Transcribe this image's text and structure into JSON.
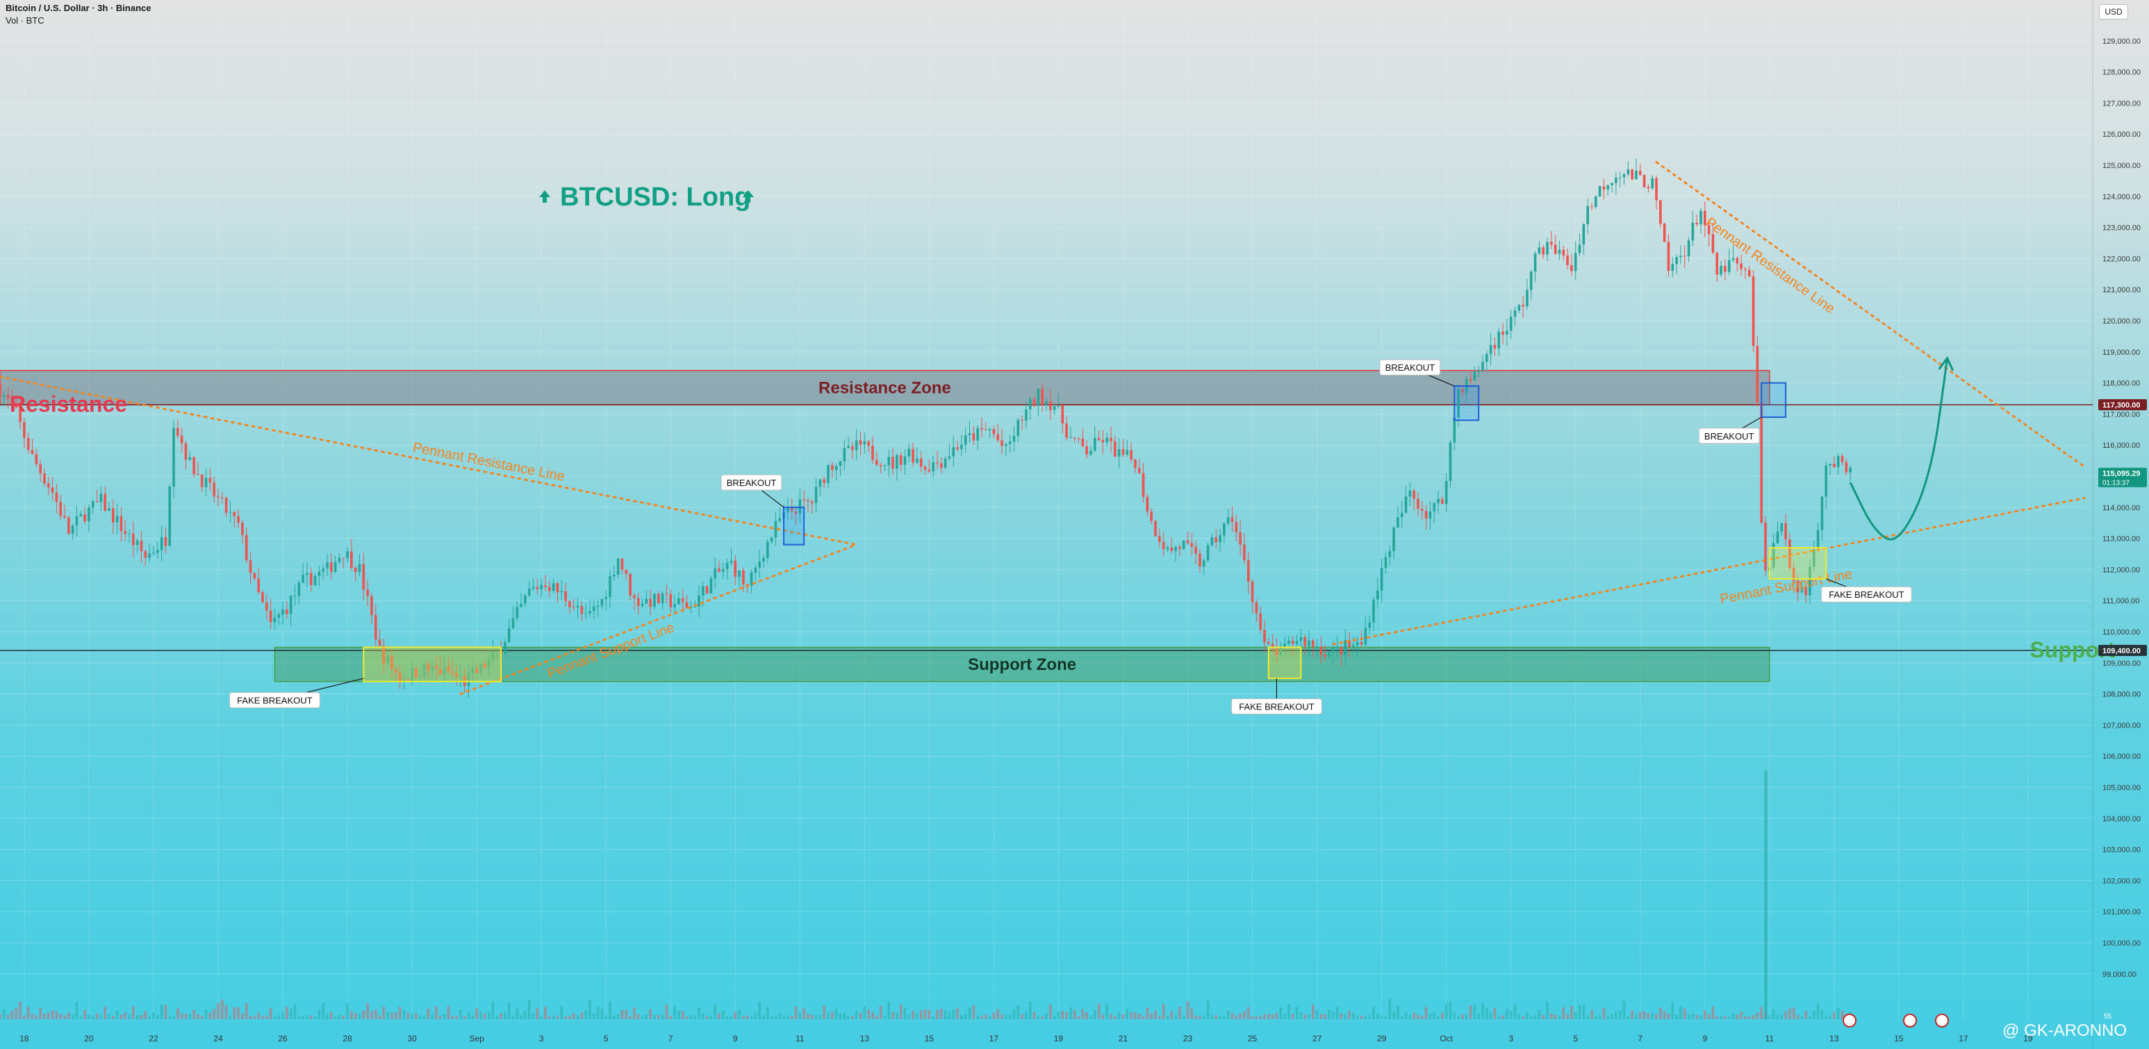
{
  "header": {
    "title": "Bitcoin / U.S. Dollar · 3h · Binance",
    "subtitle": "Vol · BTC",
    "currency_button": "USD"
  },
  "watermark": "@ GK-ARONNO",
  "colors": {
    "up": "#26a69a",
    "down": "#ef5350",
    "resistance": "#d32f2f",
    "support": "#43a047",
    "trendline": "#f5841f",
    "label_green": "#12a085"
  },
  "chart_data": {
    "type": "candlestick",
    "title": "BTCUSD: Long",
    "y_axis": {
      "ylim": [
        97500,
        130000
      ],
      "ticks": [
        "99,000.00",
        "100,000.00",
        "101,000.00",
        "102,000.00",
        "103,000.00",
        "104,000.00",
        "105,000.00",
        "106,000.00",
        "107,000.00",
        "108,000.00",
        "109,000.00",
        "110,000.00",
        "111,000.00",
        "112,000.00",
        "113,000.00",
        "114,000.00",
        "115,000.00",
        "116,000.00",
        "117,000.00",
        "118,000.00",
        "119,000.00",
        "120,000.00",
        "121,000.00",
        "122,000.00",
        "123,000.00",
        "124,000.00",
        "125,000.00",
        "126,000.00",
        "127,000.00",
        "128,000.00",
        "129,000.00"
      ],
      "price_badges": [
        {
          "label": "117,300.00",
          "value": 117300,
          "color": "#7b1f24"
        },
        {
          "label": "115,095.29",
          "sub": "01:13:37",
          "value": 115095.29,
          "color": "#12967f"
        },
        {
          "label": "109,400.00",
          "value": 109400,
          "color": "#263238"
        }
      ]
    },
    "x_axis": {
      "start": "2025-08-17T06:00",
      "end": "2025-10-21T00:00",
      "ticks": [
        {
          "date": "2025-08-18",
          "label": "18"
        },
        {
          "date": "2025-08-20",
          "label": "20"
        },
        {
          "date": "2025-08-22",
          "label": "22"
        },
        {
          "date": "2025-08-24",
          "label": "24"
        },
        {
          "date": "2025-08-26",
          "label": "26"
        },
        {
          "date": "2025-08-28",
          "label": "28"
        },
        {
          "date": "2025-08-30",
          "label": "30"
        },
        {
          "date": "2025-09-01",
          "label": "Sep"
        },
        {
          "date": "2025-09-03",
          "label": "3"
        },
        {
          "date": "2025-09-05",
          "label": "5"
        },
        {
          "date": "2025-09-07",
          "label": "7"
        },
        {
          "date": "2025-09-09",
          "label": "9"
        },
        {
          "date": "2025-09-11",
          "label": "11"
        },
        {
          "date": "2025-09-13",
          "label": "13"
        },
        {
          "date": "2025-09-15",
          "label": "15"
        },
        {
          "date": "2025-09-17",
          "label": "17"
        },
        {
          "date": "2025-09-19",
          "label": "19"
        },
        {
          "date": "2025-09-21",
          "label": "21"
        },
        {
          "date": "2025-09-23",
          "label": "23"
        },
        {
          "date": "2025-09-25",
          "label": "25"
        },
        {
          "date": "2025-09-27",
          "label": "27"
        },
        {
          "date": "2025-09-29",
          "label": "29"
        },
        {
          "date": "2025-10-01",
          "label": "Oct"
        },
        {
          "date": "2025-10-03",
          "label": "3"
        },
        {
          "date": "2025-10-05",
          "label": "5"
        },
        {
          "date": "2025-10-07",
          "label": "7"
        },
        {
          "date": "2025-10-09",
          "label": "9"
        },
        {
          "date": "2025-10-11",
          "label": "11"
        },
        {
          "date": "2025-10-13",
          "label": "13"
        },
        {
          "date": "2025-10-15",
          "label": "15"
        },
        {
          "date": "2025-10-17",
          "label": "17"
        },
        {
          "date": "2025-10-19",
          "label": "19"
        }
      ]
    },
    "price_path": [
      [
        "2025-08-17T06:00",
        118000
      ],
      [
        "2025-08-17T21:00",
        117000
      ],
      [
        "2025-08-18T09:00",
        115600
      ],
      [
        "2025-08-19T00:00",
        114500
      ],
      [
        "2025-08-19T12:00",
        113200
      ],
      [
        "2025-08-20T00:00",
        113800
      ],
      [
        "2025-08-20T12:00",
        114200
      ],
      [
        "2025-08-21T06:00",
        113200
      ],
      [
        "2025-08-21T21:00",
        112400
      ],
      [
        "2025-08-22T12:00",
        113000
      ],
      [
        "2025-08-22T18:00",
        116800
      ],
      [
        "2025-08-23T06:00",
        115400
      ],
      [
        "2025-08-24T00:00",
        114400
      ],
      [
        "2025-08-24T18:00",
        113400
      ],
      [
        "2025-08-25T06:00",
        111500
      ],
      [
        "2025-08-25T18:00",
        110200
      ],
      [
        "2025-08-26T06:00",
        110800
      ],
      [
        "2025-08-26T18:00",
        111600
      ],
      [
        "2025-08-27T12:00",
        112000
      ],
      [
        "2025-08-28T00:00",
        112600
      ],
      [
        "2025-08-28T12:00",
        112000
      ],
      [
        "2025-08-29T03:00",
        109400
      ],
      [
        "2025-08-29T18:00",
        108500
      ],
      [
        "2025-08-30T12:00",
        108800
      ],
      [
        "2025-08-31T06:00",
        108700
      ],
      [
        "2025-08-31T18:00",
        108400
      ],
      [
        "2025-09-01T06:00",
        108800
      ],
      [
        "2025-09-01T18:00",
        109300
      ],
      [
        "2025-09-02T06:00",
        110300
      ],
      [
        "2025-09-02T18:00",
        111300
      ],
      [
        "2025-09-03T06:00",
        111600
      ],
      [
        "2025-09-04T00:00",
        111000
      ],
      [
        "2025-09-04T12:00",
        110400
      ],
      [
        "2025-09-05T00:00",
        111000
      ],
      [
        "2025-09-05T12:00",
        112400
      ],
      [
        "2025-09-06T00:00",
        111000
      ],
      [
        "2025-09-07T00:00",
        111000
      ],
      [
        "2025-09-07T18:00",
        110800
      ],
      [
        "2025-09-08T12:00",
        111800
      ],
      [
        "2025-09-09T00:00",
        112200
      ],
      [
        "2025-09-09T12:00",
        111400
      ],
      [
        "2025-09-10T00:00",
        112600
      ],
      [
        "2025-09-10T12:00",
        113600
      ],
      [
        "2025-09-11T00:00",
        114000
      ],
      [
        "2025-09-11T12:00",
        114200
      ],
      [
        "2025-09-12T00:00",
        115300
      ],
      [
        "2025-09-12T12:00",
        115700
      ],
      [
        "2025-09-13T00:00",
        116000
      ],
      [
        "2025-09-13T12:00",
        115600
      ],
      [
        "2025-09-14T00:00",
        115400
      ],
      [
        "2025-09-14T12:00",
        115800
      ],
      [
        "2025-09-15T00:00",
        115300
      ],
      [
        "2025-09-15T12:00",
        115500
      ],
      [
        "2025-09-16T00:00",
        116000
      ],
      [
        "2025-09-16T12:00",
        116300
      ],
      [
        "2025-09-17T00:00",
        116500
      ],
      [
        "2025-09-17T12:00",
        115800
      ],
      [
        "2025-09-18T00:00",
        116900
      ],
      [
        "2025-09-18T12:00",
        117600
      ],
      [
        "2025-09-19T00:00",
        117300
      ],
      [
        "2025-09-19T12:00",
        116200
      ],
      [
        "2025-09-20T00:00",
        115800
      ],
      [
        "2025-09-20T12:00",
        116200
      ],
      [
        "2025-09-21T00:00",
        115700
      ],
      [
        "2025-09-21T12:00",
        115500
      ],
      [
        "2025-09-22T00:00",
        113500
      ],
      [
        "2025-09-22T12:00",
        112600
      ],
      [
        "2025-09-23T00:00",
        112800
      ],
      [
        "2025-09-23T12:00",
        112200
      ],
      [
        "2025-09-24T00:00",
        113000
      ],
      [
        "2025-09-24T12:00",
        113700
      ],
      [
        "2025-09-25T00:00",
        111700
      ],
      [
        "2025-09-25T12:00",
        109500
      ],
      [
        "2025-09-26T00:00",
        109300
      ],
      [
        "2025-09-26T12:00",
        109800
      ],
      [
        "2025-09-27T00:00",
        109600
      ],
      [
        "2025-09-27T12:00",
        109300
      ],
      [
        "2025-09-28T00:00",
        109500
      ],
      [
        "2025-09-28T12:00",
        109600
      ],
      [
        "2025-09-29T00:00",
        111500
      ],
      [
        "2025-09-29T12:00",
        113200
      ],
      [
        "2025-09-30T00:00",
        114500
      ],
      [
        "2025-09-30T12:00",
        113800
      ],
      [
        "2025-10-01T00:00",
        114200
      ],
      [
        "2025-10-01T12:00",
        117800
      ],
      [
        "2025-10-02T00:00",
        118200
      ],
      [
        "2025-10-02T12:00",
        119200
      ],
      [
        "2025-10-03T00:00",
        119800
      ],
      [
        "2025-10-03T12:00",
        120600
      ],
      [
        "2025-10-04T00:00",
        122400
      ],
      [
        "2025-10-04T12:00",
        122300
      ],
      [
        "2025-10-05T00:00",
        121700
      ],
      [
        "2025-10-05T12:00",
        123600
      ],
      [
        "2025-10-06T00:00",
        124400
      ],
      [
        "2025-10-06T12:00",
        124800
      ],
      [
        "2025-10-07T00:00",
        124600
      ],
      [
        "2025-10-07T12:00",
        124400
      ],
      [
        "2025-10-08T00:00",
        121600
      ],
      [
        "2025-10-08T12:00",
        122300
      ],
      [
        "2025-10-09T00:00",
        123600
      ],
      [
        "2025-10-09T12:00",
        121500
      ],
      [
        "2025-10-10T00:00",
        121900
      ],
      [
        "2025-10-10T12:00",
        121300
      ],
      [
        "2025-10-10T18:00",
        117300
      ],
      [
        "2025-10-10T21:00",
        113300
      ],
      [
        "2025-10-11T00:00",
        111900
      ],
      [
        "2025-10-11T06:00",
        112700
      ],
      [
        "2025-10-11T12:00",
        113700
      ],
      [
        "2025-10-11T21:00",
        111400
      ],
      [
        "2025-10-12T06:00",
        111300
      ],
      [
        "2025-10-12T15:00",
        113500
      ],
      [
        "2025-10-12T21:00",
        115400
      ],
      [
        "2025-10-13T06:00",
        115400
      ],
      [
        "2025-10-13T12:00",
        115100
      ]
    ],
    "volume_spike": {
      "x": "2025-10-10T21:00",
      "relative": 1.0
    },
    "zones": [
      {
        "name": "Resistance Zone",
        "x_from": "2025-08-17T06:00",
        "x_to": "2025-10-11T00:00",
        "y_from": 117300,
        "y_to": 118400,
        "fill": "rgba(120,110,125,0.45)",
        "stroke": "#e53935",
        "text_color": "#7b1f24"
      },
      {
        "name": "Support Zone",
        "x_from": "2025-08-25T18:00",
        "x_to": "2025-10-11T00:00",
        "y_from": 108400,
        "y_to": 109500,
        "fill": "rgba(60,150,90,0.45)",
        "stroke": "#43a047",
        "text_color": "#123526"
      }
    ],
    "hlines": [
      {
        "y": 117300,
        "color": "#7b1f24"
      },
      {
        "y": 109400,
        "color": "#263238"
      }
    ],
    "side_labels": [
      {
        "text": "Resistance",
        "x": "2025-08-17T06:00",
        "y": 117300,
        "anchor": "start",
        "color": "#e53950"
      },
      {
        "text": "Support",
        "x": "2025-10-18T18:00",
        "y": 109400,
        "anchor": "start",
        "color": "#4caf50"
      }
    ],
    "trendlines": [
      {
        "label": "Pennant Resistance Line",
        "from": [
          "2025-08-17T06:00",
          118200
        ],
        "to": [
          "2025-09-12T18:00",
          112800
        ],
        "label_at": [
          "2025-08-30T00:00",
          115800
        ]
      },
      {
        "label": "Pennant Support Line",
        "from": [
          "2025-08-31T12:00",
          108000
        ],
        "to": [
          "2025-09-12T18:00",
          112800
        ],
        "label_at": [
          "2025-09-03T06:00",
          108500
        ]
      },
      {
        "label": "Pennant Resistance Line",
        "from": [
          "2025-10-07T12:00",
          125100
        ],
        "to": [
          "2025-10-20T18:00",
          115300
        ],
        "label_at": [
          "2025-10-09T00:00",
          123100
        ]
      },
      {
        "label": "Pennant Support Line",
        "from": [
          "2025-09-27T12:00",
          109600
        ],
        "to": [
          "2025-10-20T18:00",
          114300
        ],
        "label_at": [
          "2025-10-09T12:00",
          110900
        ]
      }
    ],
    "boxes": [
      {
        "type": "breakout",
        "x_from": "2025-09-10T12:00",
        "x_to": "2025-09-11T03:00",
        "y_from": 112800,
        "y_to": 114000
      },
      {
        "type": "breakout",
        "x_from": "2025-10-01T06:00",
        "x_to": "2025-10-02T00:00",
        "y_from": 116800,
        "y_to": 117900
      },
      {
        "type": "breakout",
        "x_from": "2025-10-10T18:00",
        "x_to": "2025-10-11T12:00",
        "y_from": 116900,
        "y_to": 118000
      },
      {
        "type": "fakeout",
        "x_from": "2025-08-28T12:00",
        "x_to": "2025-09-01T18:00",
        "y_from": 108400,
        "y_to": 109500
      },
      {
        "type": "fakeout",
        "x_from": "2025-09-25T12:00",
        "x_to": "2025-09-26T12:00",
        "y_from": 108500,
        "y_to": 109500
      },
      {
        "type": "fakeout",
        "x_from": "2025-10-11T00:00",
        "x_to": "2025-10-12T18:00",
        "y_from": 111700,
        "y_to": 112700
      }
    ],
    "callouts": [
      {
        "text": "BREAKOUT",
        "at": [
          "2025-09-10T12:00",
          114000
        ],
        "label_at": [
          "2025-09-09T12:00",
          114800
        ]
      },
      {
        "text": "BREAKOUT",
        "at": [
          "2025-10-01T06:00",
          117900
        ],
        "label_at": [
          "2025-09-29T21:00",
          118500
        ]
      },
      {
        "text": "BREAKOUT",
        "at": [
          "2025-10-10T18:00",
          116900
        ],
        "label_at": [
          "2025-10-09T18:00",
          116300
        ]
      },
      {
        "text": "FAKE BREAKOUT",
        "at": [
          "2025-08-28T12:00",
          108500
        ],
        "label_at": [
          "2025-08-25T18:00",
          107800
        ]
      },
      {
        "text": "FAKE BREAKOUT",
        "at": [
          "2025-09-25T18:00",
          108500
        ],
        "label_at": [
          "2025-09-25T18:00",
          107600
        ]
      },
      {
        "text": "FAKE BREAKOUT",
        "at": [
          "2025-10-12T18:00",
          111700
        ],
        "label_at": [
          "2025-10-14T00:00",
          111200
        ]
      }
    ],
    "projection": {
      "points": [
        [
          "2025-10-13T12:00",
          114800
        ],
        [
          "2025-10-14T06:00",
          113200
        ],
        [
          "2025-10-15T00:00",
          112800
        ],
        [
          "2025-10-16T00:00",
          115000
        ],
        [
          "2025-10-16T12:00",
          118800
        ]
      ],
      "color": "#12967f"
    },
    "volume_panel_ticks": {
      "bottom_value": "55"
    }
  }
}
